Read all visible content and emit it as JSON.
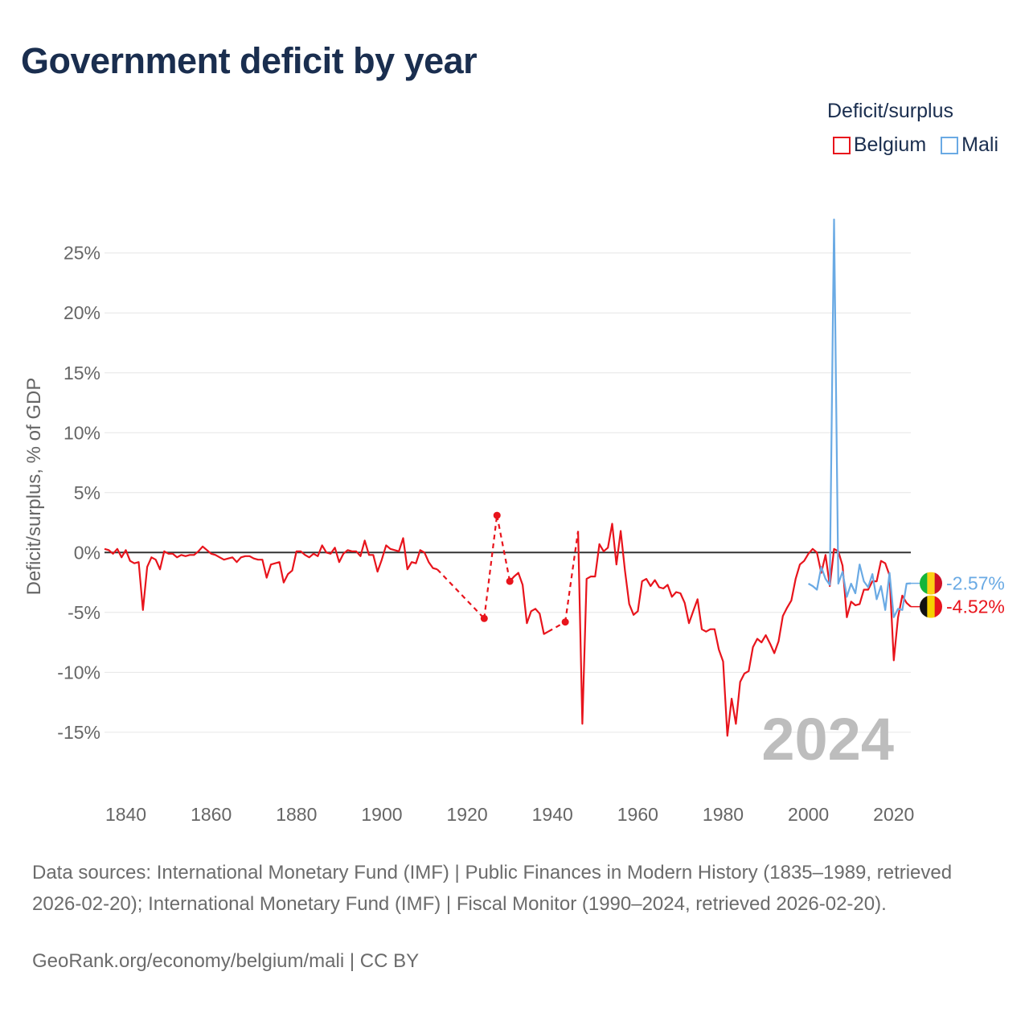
{
  "page": {
    "title": "Government deficit by year",
    "sources": "Data sources: International Monetary Fund (IMF) | Public Finances in Modern History (1835–1989, retrieved 2026-02-20); International Monetary Fund (IMF) | Fiscal Monitor (1990–2024, retrieved 2026-02-20).",
    "credit": "GeoRank.org/economy/belgium/mali | CC BY"
  },
  "legend": {
    "title": "Deficit/surplus",
    "items": [
      {
        "label": "Belgium",
        "color": "#e8141c"
      },
      {
        "label": "Mali",
        "color": "#6aaae4"
      }
    ]
  },
  "chart_data": {
    "type": "line",
    "title": "Government deficit by year",
    "xlabel": "",
    "ylabel": "Deficit/surplus, % of GDP",
    "xlim": [
      1835,
      2024
    ],
    "ylim": [
      -18.5,
      27.8
    ],
    "x_ticks": [
      1840,
      1860,
      1880,
      1900,
      1920,
      1940,
      1960,
      1980,
      2000,
      2020
    ],
    "y_ticks": [
      25,
      20,
      15,
      10,
      5,
      0,
      -5,
      -10,
      -15
    ],
    "y_tick_labels": [
      "25%",
      "20%",
      "15%",
      "10%",
      "5%",
      "0%",
      "-5%",
      "-10%",
      "-15%"
    ],
    "year_label": "2024",
    "series": [
      {
        "name": "Belgium",
        "color": "#e8141c",
        "end_label": "-4.52%",
        "flag": [
          "#111111",
          "#f5d000",
          "#e8141c"
        ],
        "x": [
          1835,
          1836,
          1837,
          1838,
          1839,
          1840,
          1841,
          1842,
          1843,
          1844,
          1845,
          1846,
          1847,
          1848,
          1849,
          1850,
          1851,
          1852,
          1853,
          1854,
          1855,
          1856,
          1857,
          1858,
          1859,
          1860,
          1861,
          1862,
          1863,
          1864,
          1865,
          1866,
          1867,
          1868,
          1869,
          1870,
          1871,
          1872,
          1873,
          1874,
          1875,
          1876,
          1877,
          1878,
          1879,
          1880,
          1881,
          1882,
          1883,
          1884,
          1885,
          1886,
          1887,
          1888,
          1889,
          1890,
          1891,
          1892,
          1893,
          1894,
          1895,
          1896,
          1897,
          1898,
          1899,
          1900,
          1901,
          1902,
          1903,
          1904,
          1905,
          1906,
          1907,
          1908,
          1909,
          1910,
          1911,
          1912,
          1913,
          1924,
          1927,
          1930,
          1931,
          1932,
          1933,
          1934,
          1935,
          1936,
          1937,
          1938,
          1939,
          1943,
          1946,
          1947,
          1948,
          1949,
          1950,
          1951,
          1952,
          1953,
          1954,
          1955,
          1956,
          1957,
          1958,
          1959,
          1960,
          1961,
          1962,
          1963,
          1964,
          1965,
          1966,
          1967,
          1968,
          1969,
          1970,
          1971,
          1972,
          1973,
          1974,
          1975,
          1976,
          1977,
          1978,
          1979,
          1980,
          1981,
          1982,
          1983,
          1984,
          1985,
          1986,
          1987,
          1988,
          1989,
          1990,
          1991,
          1992,
          1993,
          1994,
          1995,
          1996,
          1997,
          1998,
          1999,
          2000,
          2001,
          2002,
          2003,
          2004,
          2005,
          2006,
          2007,
          2008,
          2009,
          2010,
          2011,
          2012,
          2013,
          2014,
          2015,
          2016,
          2017,
          2018,
          2019,
          2020,
          2021,
          2022,
          2023,
          2024
        ],
        "y": [
          0.3,
          0.2,
          -0.1,
          0.3,
          -0.4,
          0.2,
          -0.7,
          -0.9,
          -0.8,
          -4.8,
          -1.2,
          -0.4,
          -0.6,
          -1.4,
          0.1,
          -0.1,
          -0.1,
          -0.4,
          -0.2,
          -0.3,
          -0.2,
          -0.2,
          0.1,
          0.5,
          0.2,
          -0.1,
          -0.2,
          -0.4,
          -0.6,
          -0.5,
          -0.4,
          -0.8,
          -0.4,
          -0.3,
          -0.3,
          -0.5,
          -0.6,
          -0.6,
          -2.1,
          -1.0,
          -0.9,
          -0.8,
          -2.5,
          -1.8,
          -1.5,
          0.1,
          0.1,
          -0.2,
          -0.4,
          -0.1,
          -0.3,
          0.6,
          0.0,
          -0.1,
          0.4,
          -0.8,
          -0.1,
          0.2,
          0.1,
          0.1,
          -0.3,
          1.0,
          -0.2,
          -0.2,
          -1.6,
          -0.6,
          0.6,
          0.3,
          0.2,
          0.1,
          1.2,
          -1.4,
          -0.8,
          -0.9,
          0.2,
          0.0,
          -0.8,
          -1.3,
          -1.4,
          -5.5,
          3.1,
          -2.4,
          -2.0,
          -1.7,
          -2.7,
          -5.9,
          -4.9,
          -4.7,
          -5.1,
          -6.8,
          -6.6,
          -5.8,
          1.8,
          -14.3,
          -2.2,
          -2.0,
          -2.0,
          0.7,
          0.1,
          0.4,
          2.4,
          -1.0,
          1.8,
          -1.5,
          -4.3,
          -5.2,
          -4.9,
          -2.4,
          -2.2,
          -2.8,
          -2.3,
          -2.9,
          -3.0,
          -2.7,
          -3.7,
          -3.3,
          -3.4,
          -4.2,
          -5.9,
          -4.9,
          -3.9,
          -6.4,
          -6.6,
          -6.4,
          -6.4,
          -8.1,
          -9.1,
          -15.3,
          -12.2,
          -14.3,
          -10.8,
          -10.1,
          -9.9,
          -7.9,
          -7.2,
          -7.5,
          -6.9,
          -7.6,
          -8.4,
          -7.4,
          -5.3,
          -4.6,
          -4.0,
          -2.2,
          -1.0,
          -0.7,
          -0.1,
          0.3,
          0.0,
          -1.7,
          -0.2,
          -2.8,
          0.3,
          0.1,
          -1.1,
          -5.4,
          -4.1,
          -4.4,
          -4.3,
          -3.1,
          -3.1,
          -2.4,
          -2.4,
          -0.7,
          -0.9,
          -1.9,
          -9.0,
          -5.4,
          -3.6,
          -4.2,
          -4.52
        ],
        "dashed_segments": [
          [
            1913,
            1924
          ],
          [
            1924,
            1927
          ],
          [
            1927,
            1930
          ],
          [
            1939,
            1943
          ],
          [
            1943,
            1946
          ]
        ],
        "markers": [
          1924,
          1927,
          1930,
          1943
        ]
      },
      {
        "name": "Mali",
        "color": "#6aaae4",
        "end_label": "-2.57%",
        "flag": [
          "#14b53a",
          "#fcd116",
          "#ce1126"
        ],
        "x": [
          2000,
          2001,
          2002,
          2003,
          2004,
          2005,
          2006,
          2007,
          2008,
          2009,
          2010,
          2011,
          2012,
          2013,
          2014,
          2015,
          2016,
          2017,
          2018,
          2019,
          2020,
          2021,
          2022,
          2023,
          2024
        ],
        "y": [
          -2.6,
          -2.8,
          -3.1,
          -1.2,
          -2.2,
          -2.7,
          27.8,
          -2.6,
          -1.6,
          -3.7,
          -2.6,
          -3.4,
          -1.0,
          -2.4,
          -2.9,
          -1.8,
          -3.9,
          -2.8,
          -4.8,
          -1.7,
          -5.4,
          -4.7,
          -4.8,
          -2.6,
          -2.57
        ]
      }
    ]
  }
}
